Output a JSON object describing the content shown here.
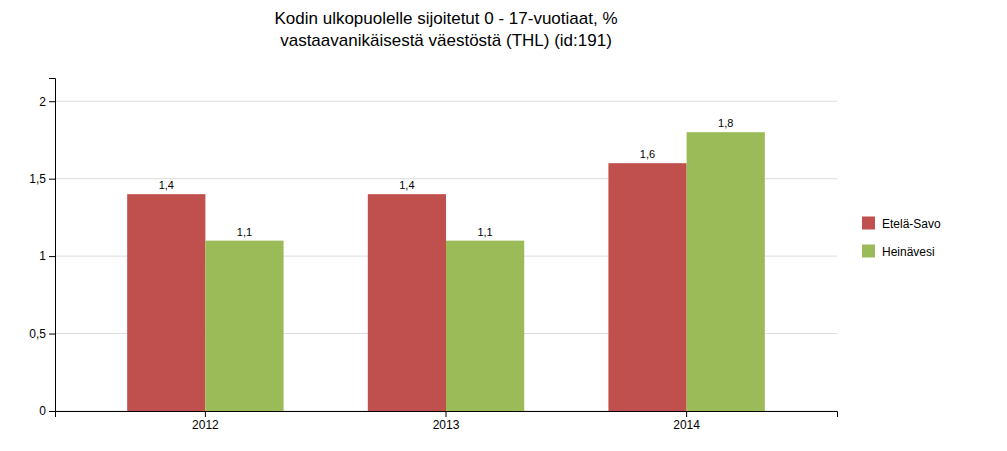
{
  "chart_data": {
    "type": "bar",
    "title": "Kodin ulkopuolelle sijoitetut 0 - 17-vuotiaat, %\nvastaavanikäisestä väestöstä (THL) (id:191)",
    "categories": [
      "2012",
      "2013",
      "2014"
    ],
    "series": [
      {
        "name": "Etelä-Savo",
        "color": "#C0504D",
        "values": [
          1.4,
          1.4,
          1.6
        ],
        "value_labels": [
          "1,4",
          "1,4",
          "1,6"
        ]
      },
      {
        "name": "Heinävesi",
        "color": "#9BBB59",
        "values": [
          1.1,
          1.1,
          1.8
        ],
        "value_labels": [
          "1,1",
          "1,1",
          "1,8"
        ]
      }
    ],
    "ylim": [
      0,
      2.15
    ],
    "yticks": [
      0,
      {
        "value": 0.5,
        "label": "0,5"
      },
      1,
      {
        "value": 1.5,
        "label": "1,5"
      },
      2
    ],
    "grid": true,
    "legend": "right",
    "data_labels": true
  }
}
